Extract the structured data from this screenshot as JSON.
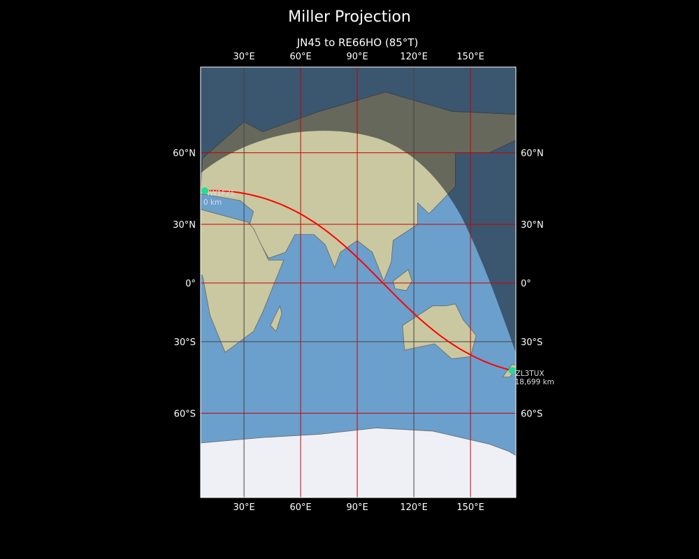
{
  "title": "Miller Projection",
  "subtitle": "JN45 to RE66HO (85°T)",
  "map": {
    "projection": "Miller",
    "extent": {
      "lon": [
        7,
        174
      ],
      "lat": [
        -83.5,
        83.6
      ]
    },
    "lon_ticks": [
      {
        "value": 30,
        "label": "30°E"
      },
      {
        "value": 60,
        "label": "60°E"
      },
      {
        "value": 90,
        "label": "90°E"
      },
      {
        "value": 120,
        "label": "120°E"
      },
      {
        "value": 150,
        "label": "150°E"
      }
    ],
    "lat_ticks": [
      {
        "value": 60,
        "label": "60°N"
      },
      {
        "value": 30,
        "label": "30°N"
      },
      {
        "value": 0,
        "label": "0°"
      },
      {
        "value": -30,
        "label": "30°S"
      },
      {
        "value": -60,
        "label": "60°S"
      }
    ],
    "grid_color": "#cc0000",
    "path_color": "#ff0000",
    "marker_color": "#22dd99",
    "start": {
      "call": "IW1FZE",
      "distance": "0 km",
      "lon": 9.2,
      "lat": 45.2
    },
    "end": {
      "call": "ZL3TUX",
      "distance": "18,699 km",
      "lon": 172.0,
      "lat": -43.2
    },
    "bearing": "85°T",
    "night_shading": true
  }
}
